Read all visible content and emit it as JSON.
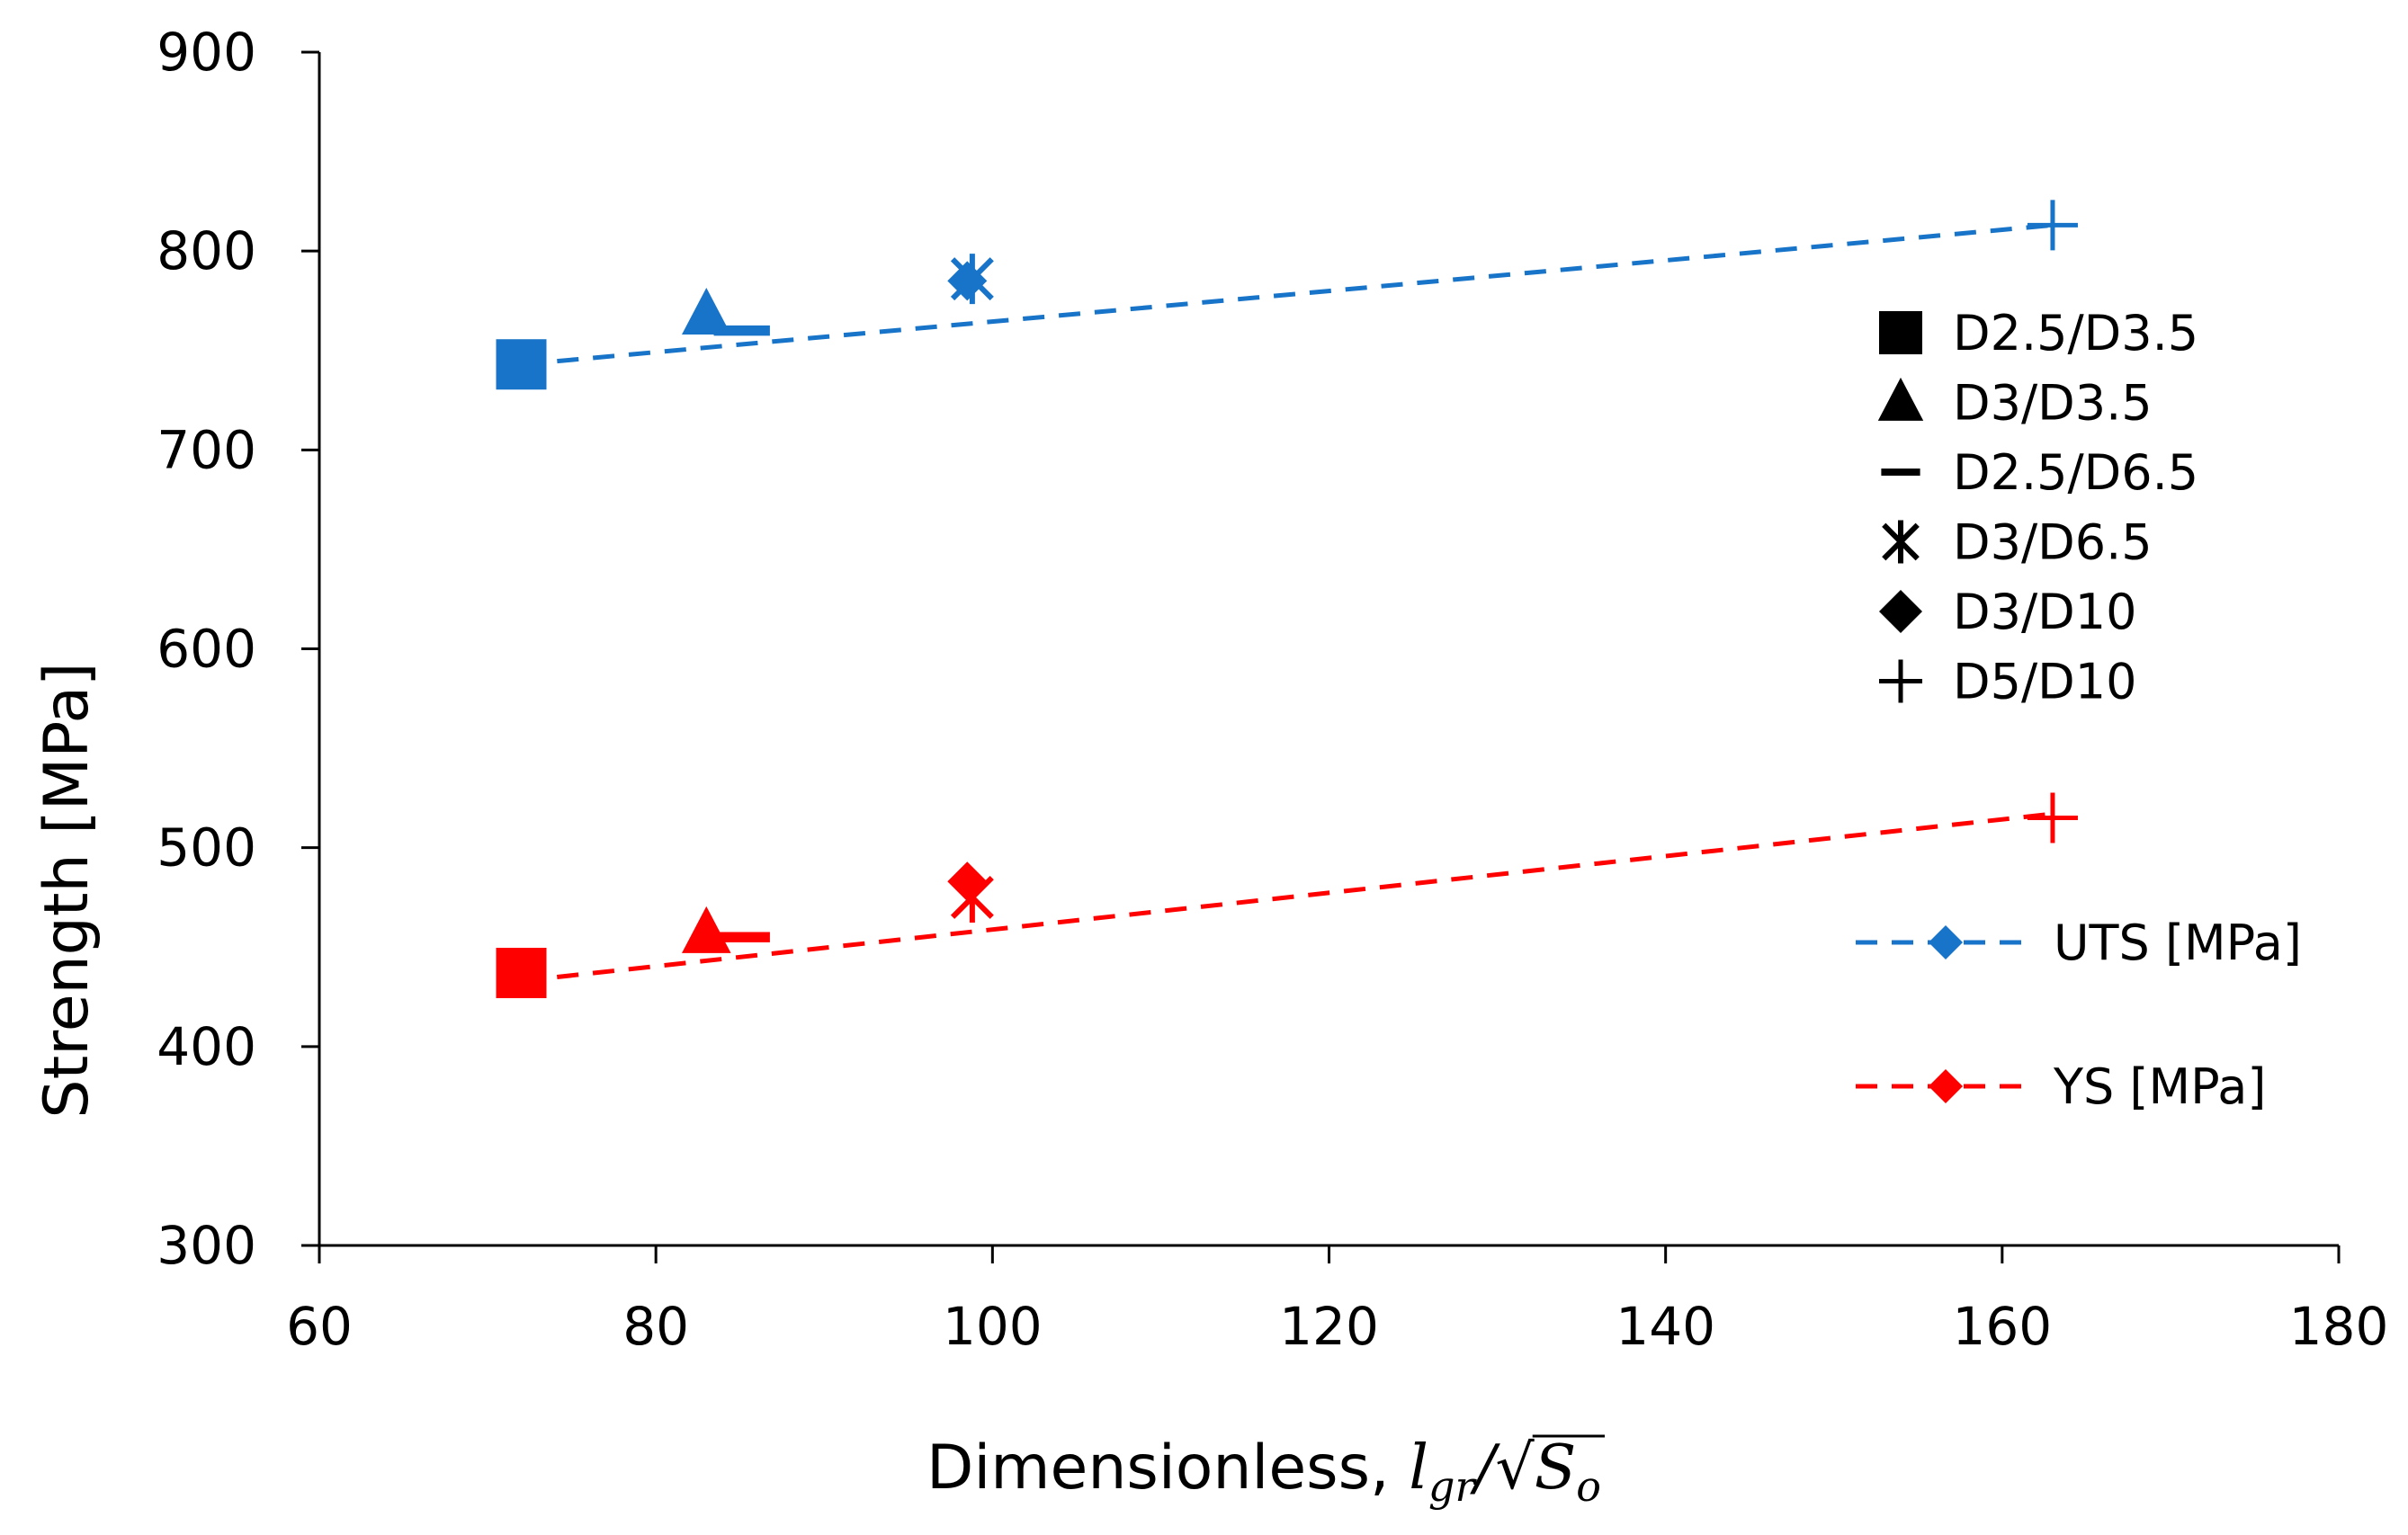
{
  "chart_data": {
    "type": "scatter",
    "title": "",
    "xlabel": "Dimensionless, ",
    "xlabel_math": {
      "base": "l",
      "sub": "gr",
      "slash": "/",
      "radical": "√",
      "rad_base": "S",
      "rad_sub": "o"
    },
    "ylabel": "Strength [MPa]",
    "xlim": [
      60,
      180
    ],
    "ylim": [
      300,
      900
    ],
    "xticks": [
      "60",
      "80",
      "100",
      "120",
      "140",
      "160",
      "180"
    ],
    "yticks": [
      "300",
      "400",
      "500",
      "600",
      "700",
      "800",
      "900"
    ],
    "grid": false,
    "specimens": [
      {
        "name": "D2.5/D3.5",
        "marker": "square",
        "x": 72
      },
      {
        "name": "D3/D3.5",
        "marker": "triangle",
        "x": 83
      },
      {
        "name": "D2.5/D6.5",
        "marker": "dash",
        "x": 85
      },
      {
        "name": "D3/D6.5",
        "marker": "asterisk",
        "x": 98.8
      },
      {
        "name": "D3/D10",
        "marker": "diamond",
        "x": 98.5
      },
      {
        "name": "D5/D10",
        "marker": "plus",
        "x": 163
      }
    ],
    "series": [
      {
        "name": "UTS [MPa]",
        "color": "#1874C8",
        "values": [
          743,
          768,
          760,
          786,
          785,
          813
        ]
      },
      {
        "name": "YS [MPa]",
        "color": "#FF0000",
        "values": [
          437,
          457,
          455,
          475,
          483,
          515
        ]
      }
    ],
    "trendlines": [
      {
        "series": "UTS [MPa]",
        "x": [
          72,
          163
        ],
        "y": [
          743,
          813
        ]
      },
      {
        "series": "YS [MPa]",
        "x": [
          72,
          163
        ],
        "y": [
          433,
          517
        ]
      }
    ],
    "legend_position": "right"
  }
}
